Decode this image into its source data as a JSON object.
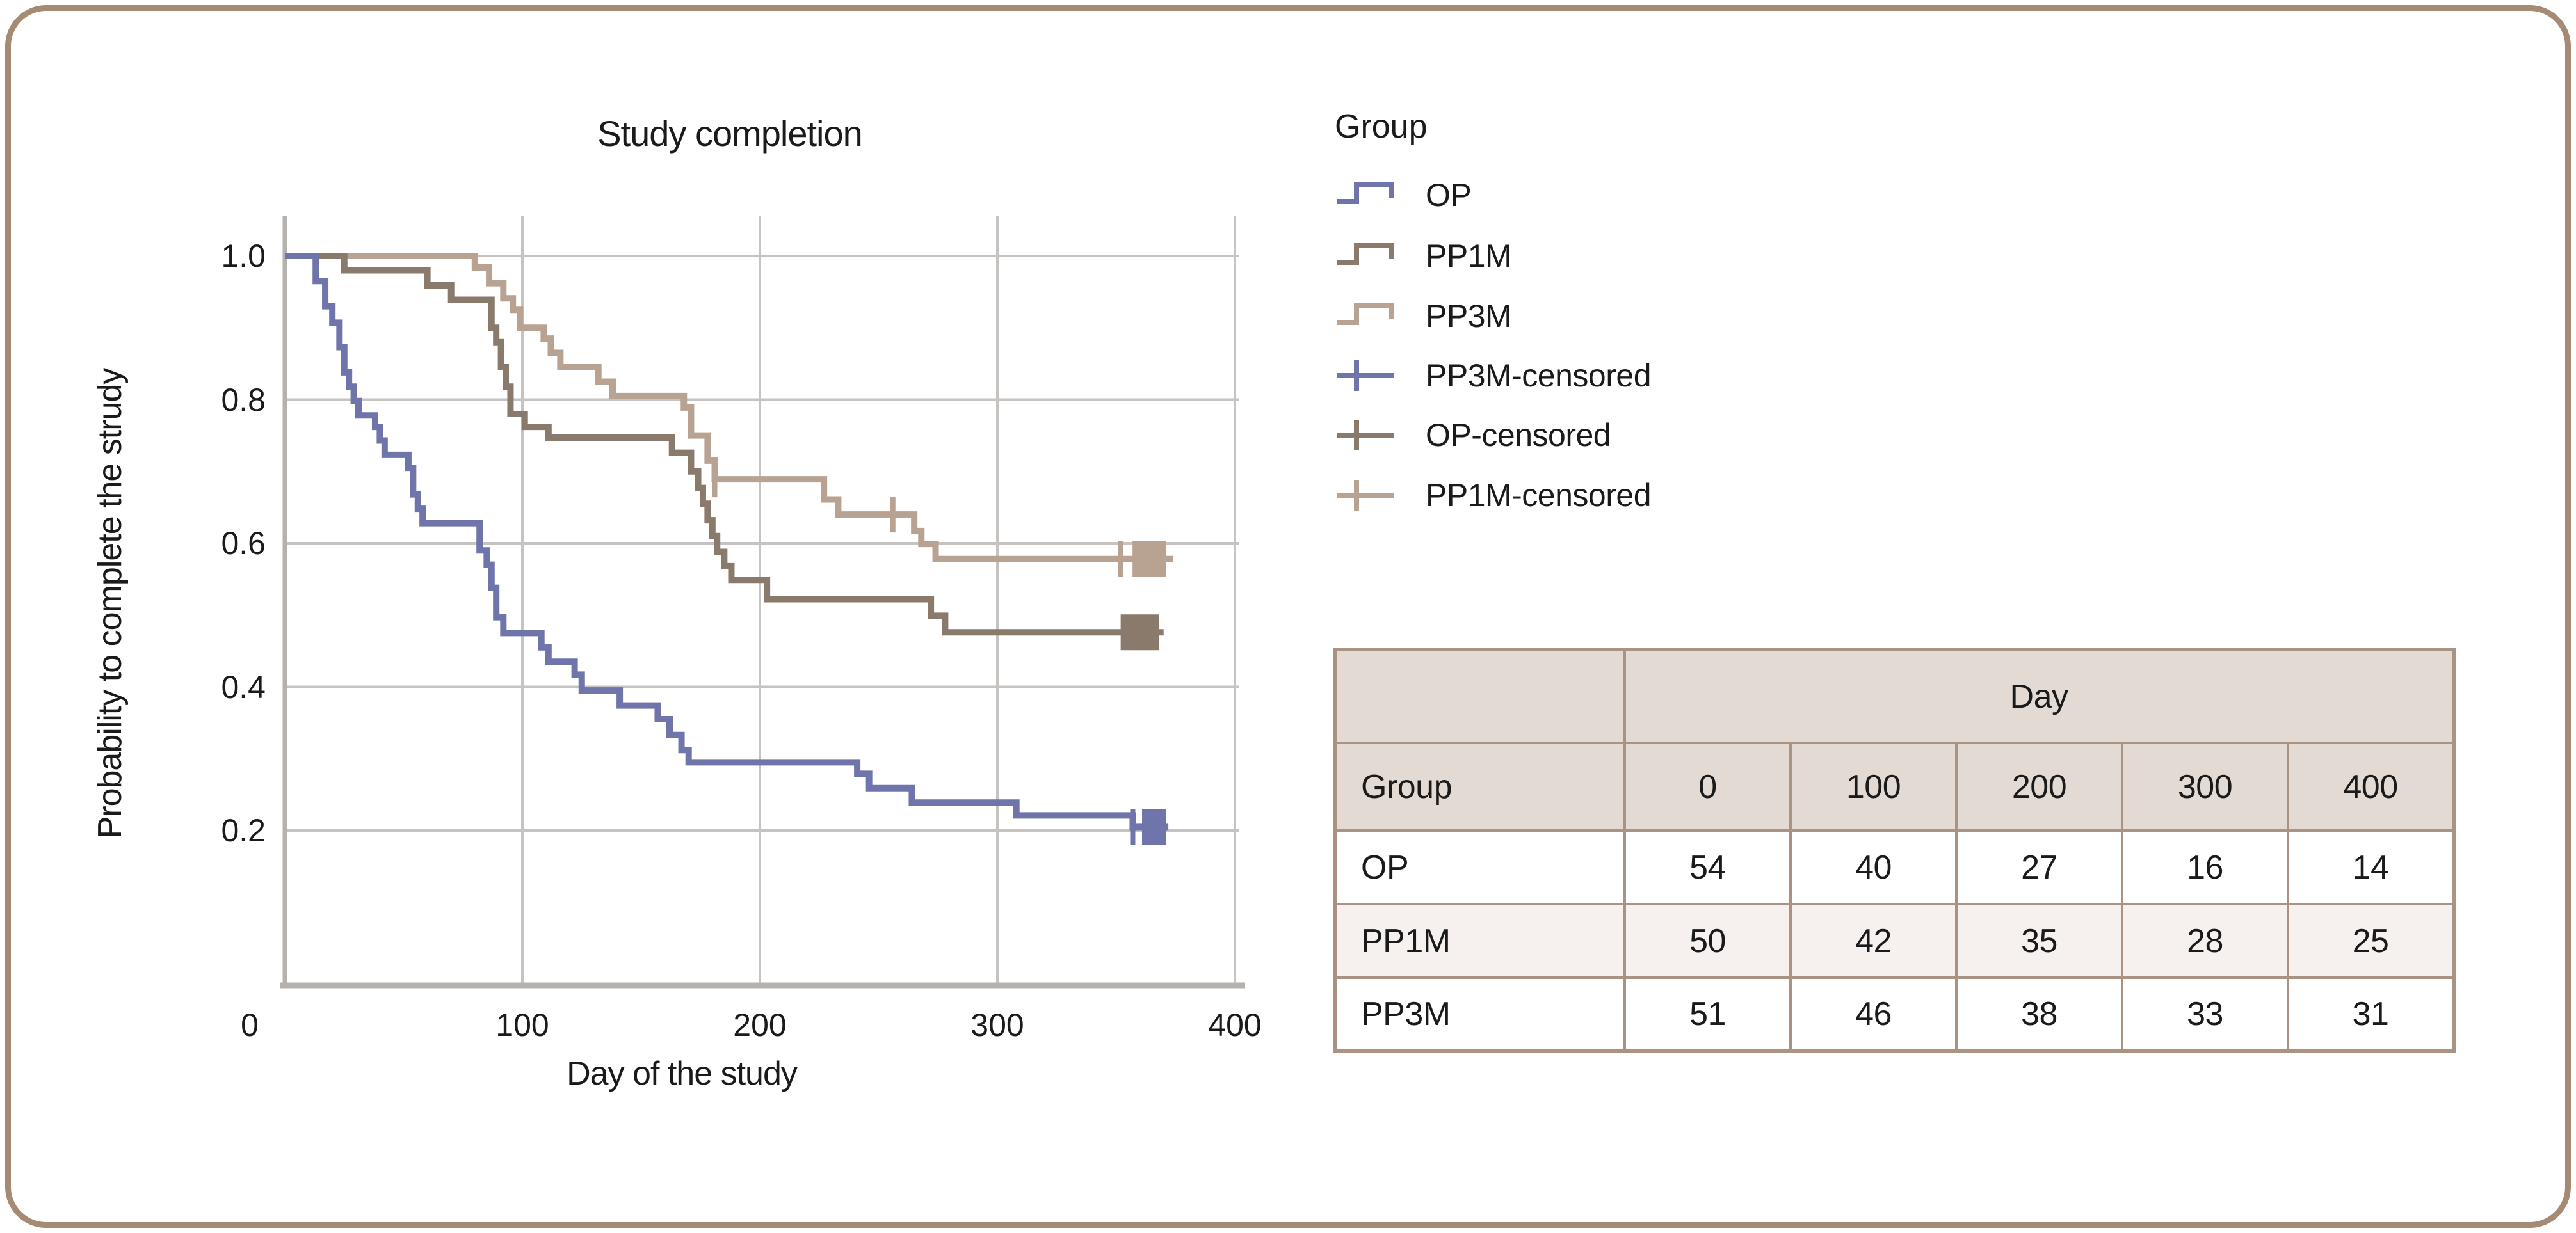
{
  "colors": {
    "frame": "#a58a74",
    "grid": "#c7c3c0",
    "axis": "#b5b1ae",
    "op": "#6f74ab",
    "pp1m": "#8a7a6b",
    "pp3m": "#b8a292",
    "table_border": "#ab9383",
    "table_header_bg": "#e3dad4",
    "table_alt_row_bg": "#f6f0ee",
    "ink": "#1a1a1a"
  },
  "chart": {
    "title": "Study completion",
    "xlabel": "Day of the study",
    "ylabel": "Probability to complete the strudy"
  },
  "legend": {
    "title": "Group",
    "items": [
      {
        "label": "OP",
        "color": "#6f74ab",
        "glyph": "step"
      },
      {
        "label": "PP1M",
        "color": "#8a7a6b",
        "glyph": "step"
      },
      {
        "label": "PP3M",
        "color": "#b8a292",
        "glyph": "step"
      },
      {
        "label": "PP3M-censored",
        "color": "#6f74ab",
        "glyph": "plus"
      },
      {
        "label": "OP-censored",
        "color": "#8a7a6b",
        "glyph": "plus"
      },
      {
        "label": "PP1M-censored",
        "color": "#b8a292",
        "glyph": "plus"
      }
    ]
  },
  "chart_data": {
    "type": "line",
    "subtype": "kaplan-meier-step",
    "title": "Study completion",
    "xlabel": "Day of the study",
    "ylabel": "Probability to complete the strudy",
    "xlim": [
      0,
      400
    ],
    "ylim": [
      0,
      1.05
    ],
    "grid": true,
    "legend_position": "right",
    "x_ticks": [
      {
        "label": "0",
        "value": 0
      },
      {
        "label": "100",
        "value": 100
      },
      {
        "label": "200",
        "value": 200
      },
      {
        "label": "300",
        "value": 300
      },
      {
        "label": "400",
        "value": 400
      }
    ],
    "y_ticks": [
      {
        "label": "1.0",
        "value": 1.0
      },
      {
        "label": "0.8",
        "value": 0.8
      },
      {
        "label": "0.6",
        "value": 0.6
      },
      {
        "label": "0.4",
        "value": 0.4
      },
      {
        "label": "0.2",
        "value": 0.2
      }
    ],
    "series": [
      {
        "name": "PP3M",
        "color": "#b8a292",
        "step_points": [
          [
            0,
            1.0
          ],
          [
            80,
            0.984
          ],
          [
            86,
            0.962
          ],
          [
            92,
            0.941
          ],
          [
            96,
            0.925
          ],
          [
            99,
            0.9
          ],
          [
            109,
            0.885
          ],
          [
            112,
            0.865
          ],
          [
            116,
            0.845
          ],
          [
            132,
            0.825
          ],
          [
            138,
            0.805
          ],
          [
            168,
            0.789
          ],
          [
            171,
            0.75
          ],
          [
            178,
            0.715
          ],
          [
            181,
            0.689
          ],
          [
            227,
            0.661
          ],
          [
            233,
            0.64
          ],
          [
            265,
            0.617
          ],
          [
            268,
            0.599
          ],
          [
            274,
            0.578
          ],
          [
            374,
            0.578
          ]
        ],
        "censored": [
          [
            181,
            0.689
          ],
          [
            256,
            0.64
          ],
          [
            352,
            0.578
          ],
          [
            358,
            0.578
          ],
          [
            360,
            0.578
          ],
          [
            362,
            0.578
          ],
          [
            364,
            0.578
          ],
          [
            366,
            0.578
          ],
          [
            368,
            0.578
          ],
          [
            370,
            0.578
          ]
        ]
      },
      {
        "name": "PP1M",
        "color": "#8a7a6b",
        "step_points": [
          [
            0,
            1.0
          ],
          [
            25,
            0.98
          ],
          [
            60,
            0.959
          ],
          [
            70,
            0.939
          ],
          [
            87,
            0.9
          ],
          [
            89,
            0.88
          ],
          [
            91,
            0.845
          ],
          [
            93,
            0.818
          ],
          [
            95,
            0.78
          ],
          [
            101,
            0.762
          ],
          [
            111,
            0.747
          ],
          [
            163,
            0.726
          ],
          [
            171,
            0.7
          ],
          [
            174,
            0.677
          ],
          [
            176,
            0.655
          ],
          [
            178,
            0.632
          ],
          [
            180,
            0.61
          ],
          [
            182,
            0.588
          ],
          [
            185,
            0.568
          ],
          [
            188,
            0.549
          ],
          [
            203,
            0.522
          ],
          [
            272,
            0.499
          ],
          [
            278,
            0.476
          ],
          [
            370,
            0.476
          ]
        ],
        "censored": [
          [
            353,
            0.476
          ],
          [
            355,
            0.476
          ],
          [
            357,
            0.476
          ],
          [
            359,
            0.476
          ],
          [
            361,
            0.476
          ],
          [
            363,
            0.476
          ],
          [
            365,
            0.476
          ],
          [
            367,
            0.476
          ]
        ]
      },
      {
        "name": "OP",
        "color": "#6f74ab",
        "step_points": [
          [
            0,
            1.0
          ],
          [
            13,
            0.965
          ],
          [
            17,
            0.93
          ],
          [
            20,
            0.907
          ],
          [
            23,
            0.873
          ],
          [
            25,
            0.838
          ],
          [
            27,
            0.818
          ],
          [
            29,
            0.798
          ],
          [
            31,
            0.778
          ],
          [
            38,
            0.762
          ],
          [
            40,
            0.743
          ],
          [
            42,
            0.723
          ],
          [
            52,
            0.705
          ],
          [
            54,
            0.668
          ],
          [
            56,
            0.648
          ],
          [
            58,
            0.628
          ],
          [
            82,
            0.59
          ],
          [
            85,
            0.57
          ],
          [
            87,
            0.538
          ],
          [
            89,
            0.497
          ],
          [
            92,
            0.475
          ],
          [
            108,
            0.455
          ],
          [
            111,
            0.435
          ],
          [
            122,
            0.417
          ],
          [
            125,
            0.395
          ],
          [
            141,
            0.374
          ],
          [
            157,
            0.355
          ],
          [
            162,
            0.333
          ],
          [
            167,
            0.312
          ],
          [
            170,
            0.295
          ],
          [
            241,
            0.279
          ],
          [
            246,
            0.259
          ],
          [
            264,
            0.239
          ],
          [
            308,
            0.221
          ],
          [
            357,
            0.205
          ],
          [
            372,
            0.205
          ]
        ],
        "censored": [
          [
            357,
            0.205
          ],
          [
            362,
            0.205
          ],
          [
            364,
            0.205
          ],
          [
            366,
            0.205
          ],
          [
            368,
            0.205
          ],
          [
            370,
            0.205
          ]
        ]
      }
    ]
  },
  "table": {
    "span_header": "Day",
    "col_header": "Group",
    "day_columns": [
      "0",
      "100",
      "200",
      "300",
      "400"
    ],
    "rows": [
      {
        "group": "OP",
        "values": [
          "54",
          "40",
          "27",
          "16",
          "14"
        ]
      },
      {
        "group": "PP1M",
        "values": [
          "50",
          "42",
          "35",
          "28",
          "25"
        ]
      },
      {
        "group": "PP3M",
        "values": [
          "51",
          "46",
          "38",
          "33",
          "31"
        ]
      }
    ]
  }
}
